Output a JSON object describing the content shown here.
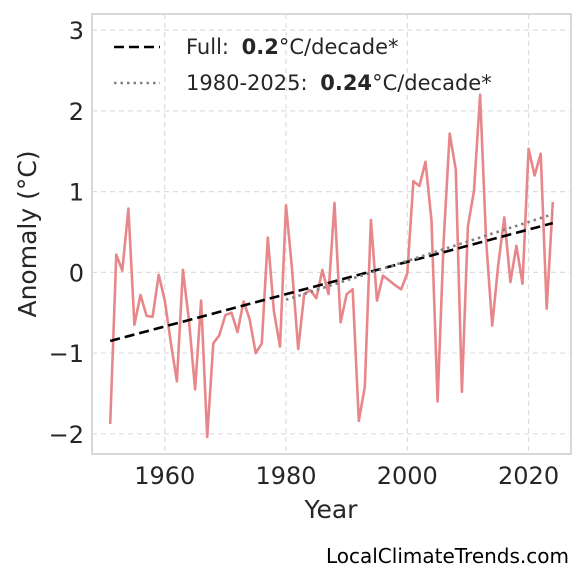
{
  "chart_data": {
    "type": "line",
    "title": "",
    "xlabel": "Year",
    "ylabel": "Anomaly (°C)",
    "xlim": [
      1948,
      2027
    ],
    "ylim": [
      -2.25,
      3.2
    ],
    "xticks": [
      1960,
      1980,
      2000,
      2020
    ],
    "yticks": [
      -2,
      -1,
      0,
      1,
      2,
      3
    ],
    "ytick_labels": [
      "−2",
      "−1",
      "0",
      "1",
      "2",
      "3"
    ],
    "grid": true,
    "legend_position": "top-left",
    "series": [
      {
        "kind": "observed",
        "color": "#e8878a",
        "x": [
          1951,
          1952,
          1953,
          1954,
          1955,
          1956,
          1957,
          1958,
          1959,
          1960,
          1961,
          1962,
          1963,
          1964,
          1965,
          1966,
          1967,
          1968,
          1969,
          1970,
          1971,
          1972,
          1973,
          1974,
          1975,
          1976,
          1977,
          1978,
          1979,
          1980,
          1981,
          1982,
          1983,
          1984,
          1985,
          1986,
          1987,
          1988,
          1989,
          1990,
          1991,
          1992,
          1993,
          1994,
          1995,
          1996,
          1997,
          1998,
          1999,
          2000,
          2001,
          2002,
          2003,
          2004,
          2005,
          2006,
          2007,
          2008,
          2009,
          2010,
          2011,
          2012,
          2013,
          2014,
          2015,
          2016,
          2017,
          2018,
          2019,
          2020,
          2021,
          2022,
          2023,
          2024
        ],
        "y": [
          -1.88,
          0.22,
          0.02,
          0.79,
          -0.65,
          -0.28,
          -0.54,
          -0.55,
          -0.03,
          -0.35,
          -0.87,
          -1.35,
          0.03,
          -0.6,
          -1.45,
          -0.35,
          -2.04,
          -0.88,
          -0.78,
          -0.53,
          -0.5,
          -0.74,
          -0.36,
          -0.58,
          -1.0,
          -0.88,
          0.43,
          -0.48,
          -0.92,
          0.83,
          0.03,
          -0.95,
          -0.27,
          -0.22,
          -0.32,
          0.03,
          -0.27,
          0.86,
          -0.62,
          -0.27,
          -0.21,
          -1.84,
          -1.42,
          0.65,
          -0.35,
          -0.04,
          -0.1,
          -0.16,
          -0.21,
          -0.01,
          1.13,
          1.07,
          1.37,
          0.64,
          -1.6,
          0.4,
          1.72,
          1.27,
          -1.48,
          0.57,
          1.01,
          2.2,
          0.4,
          -0.66,
          0.09,
          0.68,
          -0.12,
          0.33,
          -0.14,
          1.53,
          1.2,
          1.47,
          -0.45,
          0.87
        ]
      },
      {
        "kind": "trend-full",
        "name": "Full:",
        "rate": "0.2",
        "unit": "°C/decade*",
        "color": "#000000",
        "x": [
          1951,
          2024
        ],
        "y": [
          -0.85,
          0.61
        ]
      },
      {
        "kind": "trend-recent",
        "name": "1980-2025:",
        "rate": "0.24",
        "unit": "°C/decade*",
        "color": "#808080",
        "x": [
          1980,
          2024
        ],
        "y": [
          -0.34,
          0.72
        ]
      }
    ]
  },
  "source": "LocalClimateTrends.com"
}
